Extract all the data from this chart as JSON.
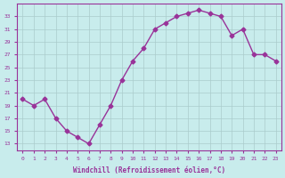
{
  "x": [
    0,
    1,
    2,
    3,
    4,
    5,
    6,
    7,
    8,
    9,
    10,
    11,
    12,
    13,
    14,
    15,
    16,
    17,
    18,
    19,
    20,
    21,
    22,
    23
  ],
  "y": [
    20,
    19,
    20,
    17,
    15,
    14,
    13,
    16,
    19,
    23,
    26,
    28,
    31,
    32,
    33,
    33.5,
    34,
    33.5,
    33,
    30,
    31,
    27,
    27,
    26
  ],
  "line_color": "#993399",
  "marker": "D",
  "marker_size": 2.5,
  "bg_color": "#c8ecec",
  "grid_color": "#aacccc",
  "tick_color": "#993399",
  "xlabel": "Windchill (Refroidissement éolien,°C)",
  "xlabel_color": "#993399",
  "ylim": [
    12,
    35
  ],
  "xlim": [
    -0.5,
    23.5
  ],
  "yticks": [
    13,
    15,
    17,
    19,
    21,
    23,
    25,
    27,
    29,
    31,
    33
  ],
  "xticks": [
    0,
    1,
    2,
    3,
    4,
    5,
    6,
    7,
    8,
    9,
    10,
    11,
    12,
    13,
    14,
    15,
    16,
    17,
    18,
    19,
    20,
    21,
    22,
    23
  ]
}
